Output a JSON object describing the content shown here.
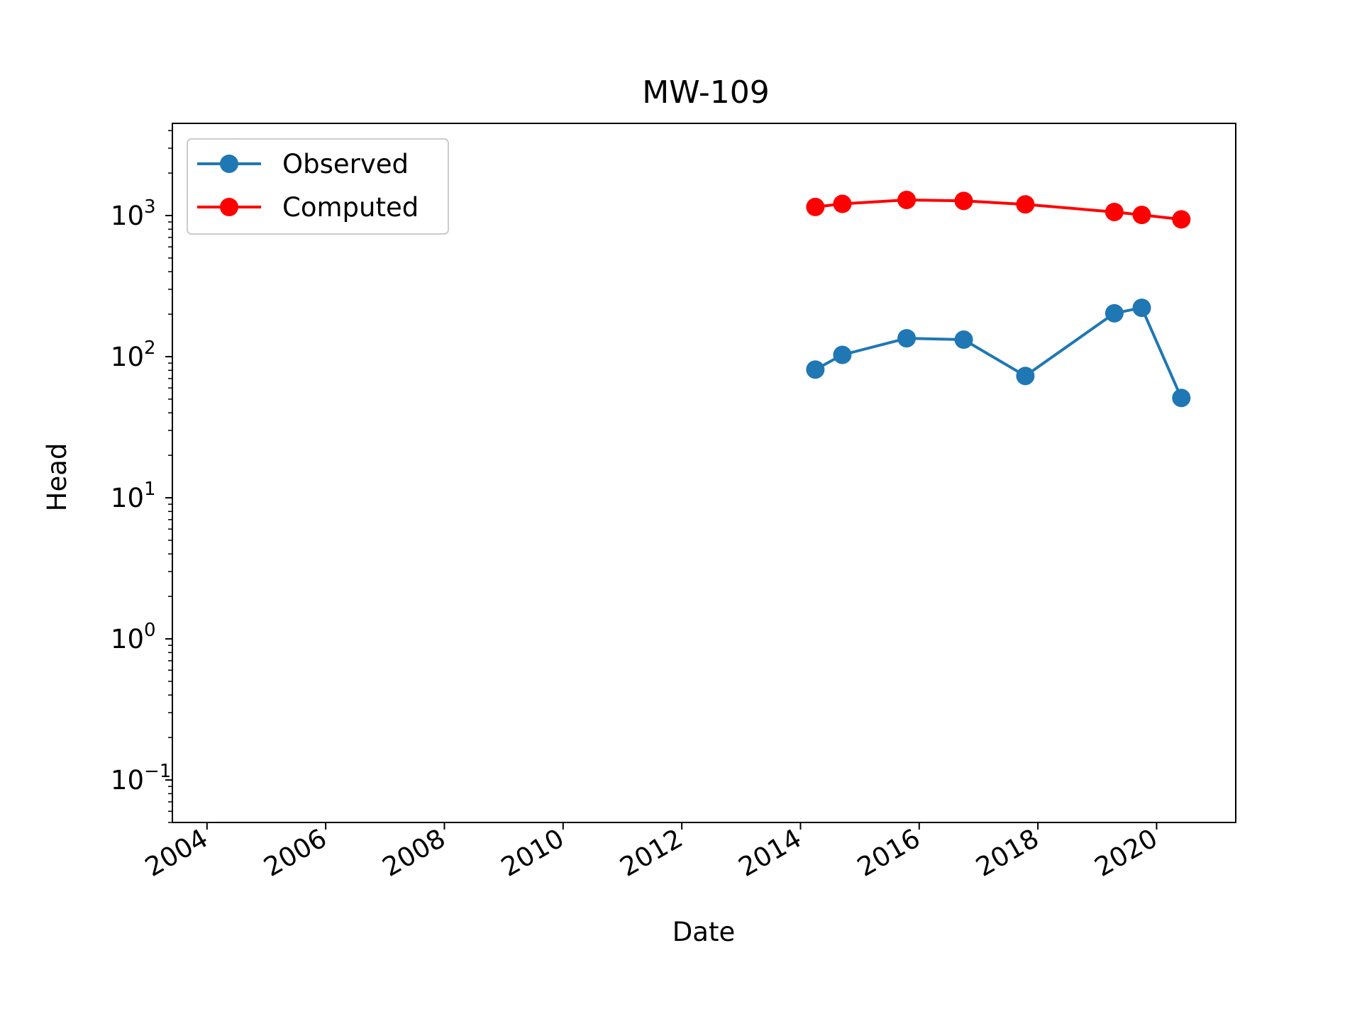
{
  "chart_data": {
    "type": "line",
    "title": "MW-109",
    "xlabel": "Date",
    "ylabel": "Head",
    "xscale": "date",
    "yscale": "log",
    "xlim": [
      "2003-06-01",
      "2021-05-01"
    ],
    "ylim": [
      0.05,
      4500
    ],
    "grid": false,
    "legend_position": "upper left",
    "x_ticks": [
      "2004",
      "2006",
      "2008",
      "2010",
      "2012",
      "2014",
      "2016",
      "2018",
      "2020"
    ],
    "y_ticks": [
      {
        "base": "10",
        "exp": "−1",
        "value": 0.1
      },
      {
        "base": "10",
        "exp": "0",
        "value": 1
      },
      {
        "base": "10",
        "exp": "1",
        "value": 10
      },
      {
        "base": "10",
        "exp": "2",
        "value": 100
      },
      {
        "base": "10",
        "exp": "3",
        "value": 1000
      }
    ],
    "series": [
      {
        "name": "Observed",
        "color": "#1f77b4",
        "marker": "circle",
        "x": [
          "2014-04-01",
          "2014-09-15",
          "2015-10-15",
          "2016-10-01",
          "2017-10-15",
          "2019-04-15",
          "2019-10-01",
          "2020-06-01"
        ],
        "y": [
          81,
          103,
          135,
          132,
          73,
          203,
          222,
          51
        ]
      },
      {
        "name": "Computed",
        "color": "#ff0000",
        "marker": "circle",
        "x": [
          "2014-04-01",
          "2014-09-15",
          "2015-10-15",
          "2016-10-01",
          "2017-10-15",
          "2019-04-15",
          "2019-10-01",
          "2020-06-01"
        ],
        "y": [
          1150,
          1210,
          1290,
          1270,
          1200,
          1060,
          1010,
          940
        ]
      }
    ]
  }
}
